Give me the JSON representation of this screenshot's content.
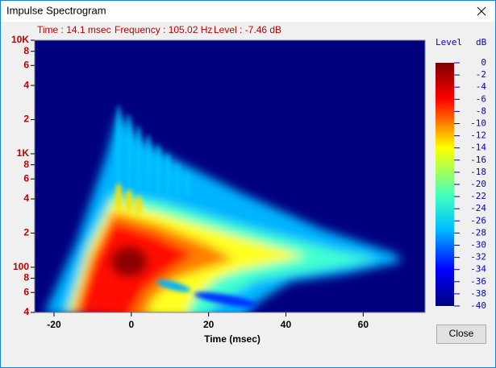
{
  "window": {
    "title": "Impulse Spectrogram"
  },
  "readout": [
    "Time : 14.1 msec",
    "Frequency : 105.02 Hz",
    "Level : -7.46 dB"
  ],
  "plot": {
    "type": "heatmap",
    "x_label": "Time (msec)",
    "xlim": [
      -25,
      76
    ],
    "xticks": [
      -20,
      0,
      20,
      40,
      60
    ],
    "ylim": [
      40,
      10000
    ],
    "y_scale": "log",
    "yticks": [
      {
        "value": 10000,
        "label": "10K"
      },
      {
        "value": 8000,
        "label": "8"
      },
      {
        "value": 6000,
        "label": "6"
      },
      {
        "value": 4000,
        "label": "4"
      },
      {
        "value": 2000,
        "label": "2"
      },
      {
        "value": 1000,
        "label": "1K"
      },
      {
        "value": 800,
        "label": "8"
      },
      {
        "value": 600,
        "label": "6"
      },
      {
        "value": 400,
        "label": "4"
      },
      {
        "value": 200,
        "label": "2"
      },
      100,
      {
        "value": 80,
        "label": "8"
      },
      {
        "value": 60,
        "label": "6"
      },
      {
        "value": 40,
        "label": "4"
      }
    ]
  },
  "colorbar": {
    "title": "Level",
    "unit": "dB",
    "lim": [
      -40,
      0
    ],
    "ticks": [
      0,
      -2,
      -4,
      -6,
      -8,
      -10,
      -12,
      -14,
      -16,
      -18,
      -20,
      -22,
      -24,
      -26,
      -28,
      -30,
      -32,
      -34,
      -36,
      -38,
      -40
    ]
  },
  "button": {
    "label": "Close"
  }
}
